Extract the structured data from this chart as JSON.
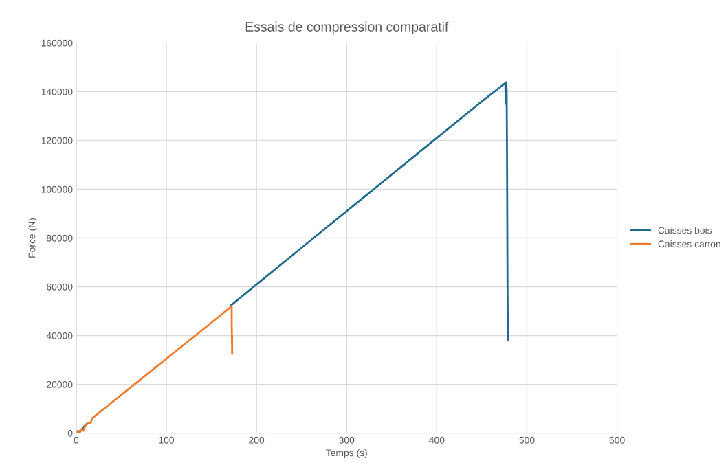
{
  "chart_data": {
    "type": "line",
    "title": "Essais de compression comparatif",
    "xlabel": "Temps (s)",
    "ylabel": "Force (N)",
    "xlim": [
      0,
      600
    ],
    "xticks": [
      0,
      100,
      200,
      300,
      400,
      500,
      600
    ],
    "ylim": [
      0,
      160000
    ],
    "yticks": [
      0,
      20000,
      40000,
      60000,
      80000,
      100000,
      120000,
      140000,
      160000
    ],
    "grid": true,
    "legend": "right",
    "marker": "none",
    "line_style": "solid",
    "series": [
      {
        "name": "Caisses bois",
        "color": "#1f6b8f",
        "x": [
          0,
          3,
          6,
          10,
          13,
          16,
          18,
          50,
          100,
          172,
          250,
          350,
          450,
          476,
          476.5,
          477,
          477.5,
          478,
          478.5,
          479
        ],
        "values": [
          0,
          500,
          1500,
          3200,
          4200,
          4300,
          null,
          null,
          null,
          52500,
          76000,
          106000,
          136000,
          143500,
          135000,
          143800,
          141000,
          110000,
          60000,
          38000
        ]
      },
      {
        "name": "Caisses carton",
        "color": "#ed7d31",
        "x": [
          0,
          2,
          4,
          6,
          8,
          10,
          13,
          16,
          18,
          50,
          100,
          150,
          172.5,
          172.5,
          173,
          173
        ],
        "values": [
          0,
          1000,
          300,
          1500,
          1000,
          3000,
          4000,
          4200,
          6200,
          15700,
          30500,
          45300,
          52000,
          45000,
          32500,
          40000
        ]
      }
    ]
  }
}
